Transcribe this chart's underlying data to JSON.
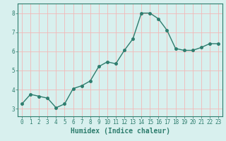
{
  "x": [
    0,
    1,
    2,
    3,
    4,
    5,
    6,
    7,
    8,
    9,
    10,
    11,
    12,
    13,
    14,
    15,
    16,
    17,
    18,
    19,
    20,
    21,
    22,
    23
  ],
  "y": [
    3.25,
    3.75,
    3.65,
    3.55,
    3.05,
    3.25,
    4.05,
    4.2,
    4.45,
    5.2,
    5.45,
    5.35,
    6.05,
    6.65,
    8.0,
    8.0,
    7.7,
    7.1,
    6.15,
    6.05,
    6.05,
    6.2,
    6.4,
    6.4
  ],
  "line_color": "#2e7d6e",
  "marker": "o",
  "markersize": 2.5,
  "linewidth": 1.0,
  "xlabel": "Humidex (Indice chaleur)",
  "ylabel": "",
  "title": "",
  "xlim": [
    -0.5,
    23.5
  ],
  "ylim": [
    2.6,
    8.5
  ],
  "yticks": [
    3,
    4,
    5,
    6,
    7,
    8
  ],
  "xticks": [
    0,
    1,
    2,
    3,
    4,
    5,
    6,
    7,
    8,
    9,
    10,
    11,
    12,
    13,
    14,
    15,
    16,
    17,
    18,
    19,
    20,
    21,
    22,
    23
  ],
  "bg_color": "#d8f0ee",
  "grid_color": "#f2b8b8",
  "tick_fontsize": 5.5,
  "xlabel_fontsize": 7,
  "tick_color": "#2e7d6e",
  "spine_color": "#2e7d6e"
}
